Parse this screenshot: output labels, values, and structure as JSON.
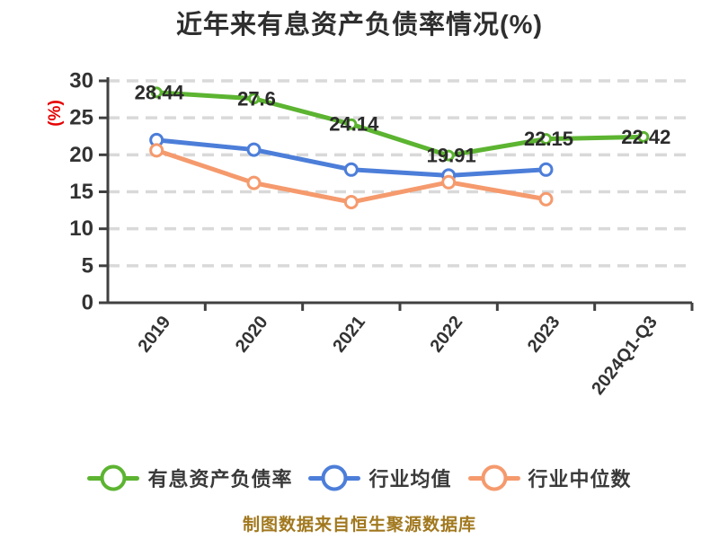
{
  "title": {
    "text": "近年来有息资产负债率情况(%)",
    "color": "#2f2f2f"
  },
  "y_axis_unit": {
    "text": "(%)",
    "color": "#e60000"
  },
  "footer": {
    "text": "制图数据来自恒生聚源数据库",
    "color": "#a1781e"
  },
  "chart_data": {
    "type": "line",
    "title": "近年来有息资产负债率情况(%)",
    "ylabel": "(%)",
    "categories": [
      "2019",
      "2020",
      "2021",
      "2022",
      "2023",
      "2024Q1-Q3"
    ],
    "series": [
      {
        "name": "有息资产负债率",
        "color": "#5cb431",
        "values": [
          28.44,
          27.6,
          24.14,
          19.91,
          22.15,
          22.42
        ],
        "data_labels": [
          "28.44",
          "27.6",
          "24.14",
          "19.91",
          "22.15",
          "22.42"
        ]
      },
      {
        "name": "行业均值",
        "color": "#4c7ed9",
        "values": [
          22.0,
          20.7,
          18.0,
          17.2,
          18.0,
          null
        ],
        "data_labels": null
      },
      {
        "name": "行业中位数",
        "color": "#f59a6d",
        "values": [
          20.6,
          16.2,
          13.6,
          16.3,
          14.0,
          null
        ],
        "data_labels": null
      }
    ],
    "ylim": [
      0,
      30
    ],
    "yticks": [
      0,
      5,
      10,
      15,
      20,
      25,
      30
    ],
    "grid": "horizontal-dashed",
    "grid_color": "#d9d9d9",
    "axis_color": "#404040",
    "tick_label_color": "#333333",
    "data_label_color": "#2b2b2b",
    "legend_position": "bottom",
    "x_tick_label_rotation_deg": -52
  }
}
